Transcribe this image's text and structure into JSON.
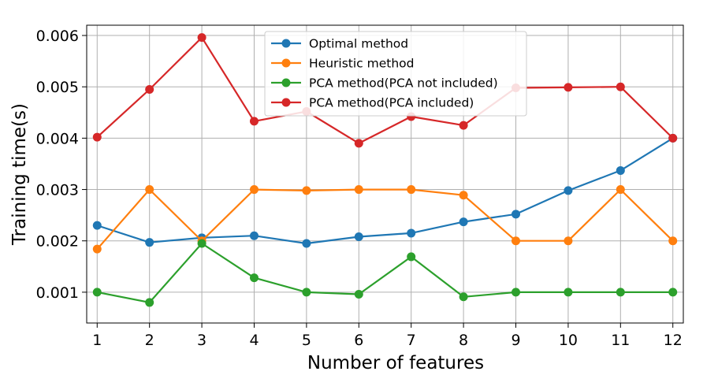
{
  "chart_data": {
    "type": "line",
    "title": "",
    "xlabel": "Number of features",
    "ylabel": "Training time(s)",
    "x": [
      1,
      2,
      3,
      4,
      5,
      6,
      7,
      8,
      9,
      10,
      11,
      12
    ],
    "xlim": [
      0.8,
      12.2
    ],
    "ylim": [
      0.0004,
      0.0062
    ],
    "yticks": [
      0.001,
      0.002,
      0.003,
      0.004,
      0.005,
      0.006
    ],
    "ytick_labels": [
      "0.001",
      "0.002",
      "0.003",
      "0.004",
      "0.005",
      "0.006"
    ],
    "grid": true,
    "legend_position": "top-center",
    "series": [
      {
        "name": "Optimal method",
        "color": "#1f77b4",
        "values": [
          0.0023,
          0.00197,
          0.00206,
          0.0021,
          0.00195,
          0.00208,
          0.00215,
          0.00237,
          0.00252,
          0.00298,
          0.00337,
          0.004
        ]
      },
      {
        "name": "Heuristic method",
        "color": "#ff7f0e",
        "values": [
          0.00184,
          0.003,
          0.002,
          0.003,
          0.00298,
          0.003,
          0.003,
          0.00289,
          0.002,
          0.002,
          0.003,
          0.002
        ]
      },
      {
        "name": "PCA method(PCA not included)",
        "color": "#2ca02c",
        "values": [
          0.001,
          0.0008,
          0.00195,
          0.00128,
          0.001,
          0.00096,
          0.00169,
          0.00091,
          0.001,
          0.001,
          0.001,
          0.001
        ]
      },
      {
        "name": "PCA method(PCA included)",
        "color": "#d62728",
        "values": [
          0.00402,
          0.00495,
          0.00596,
          0.00433,
          0.00452,
          0.0039,
          0.00442,
          0.00425,
          0.00498,
          0.00499,
          0.005,
          0.004
        ]
      }
    ]
  }
}
